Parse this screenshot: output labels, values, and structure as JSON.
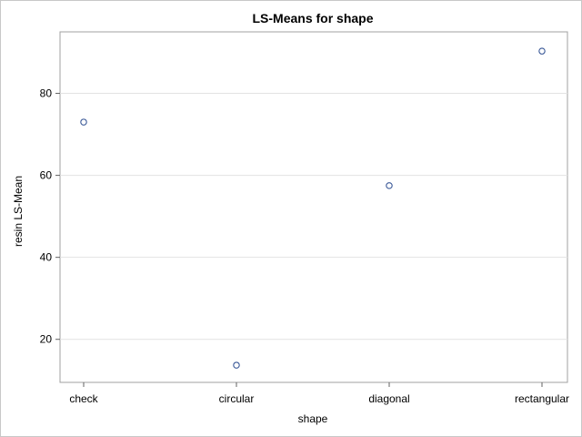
{
  "chart_data": {
    "type": "scatter",
    "title": "LS-Means for shape",
    "xlabel": "shape",
    "ylabel": "resin LS-Mean",
    "categories": [
      "check",
      "circular",
      "diagonal",
      "rectangular"
    ],
    "values": [
      73.0,
      13.7,
      57.5,
      90.3
    ],
    "ylim": [
      9.5,
      95
    ],
    "yticks": [
      20,
      40,
      60,
      80
    ],
    "grid": true,
    "marker_color": "#3b5998"
  }
}
